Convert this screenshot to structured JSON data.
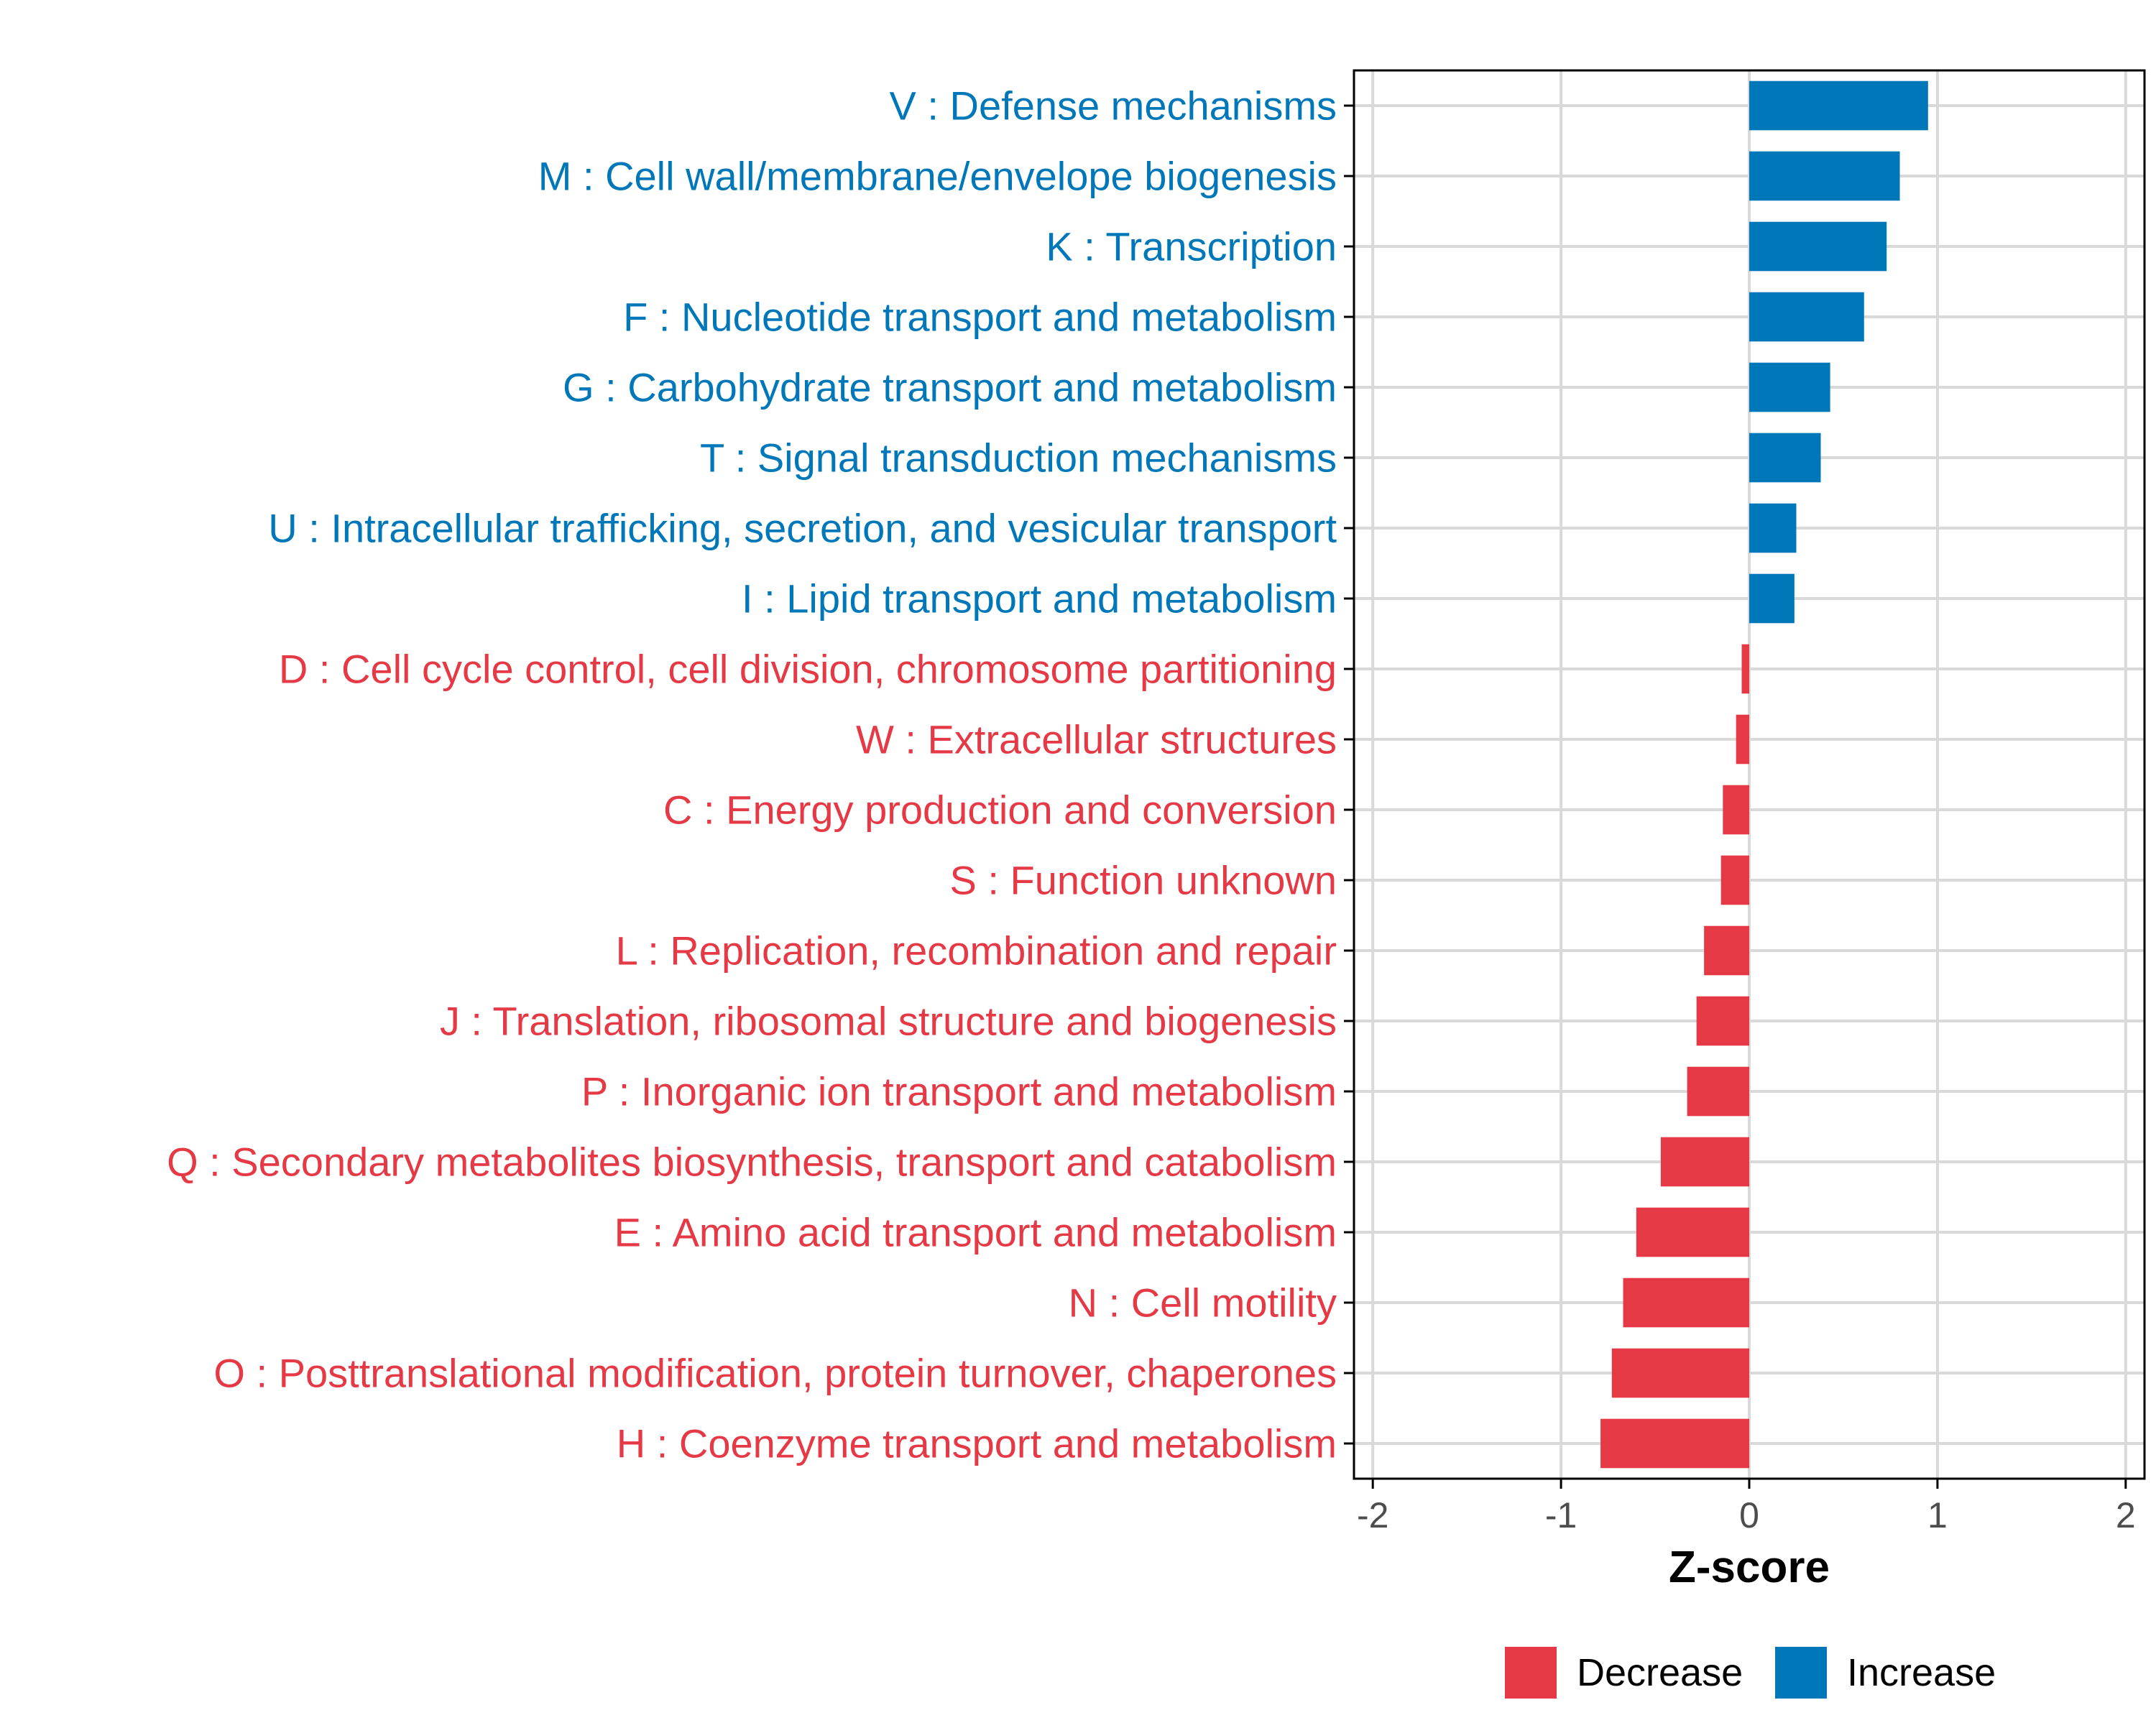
{
  "chart_data": {
    "type": "bar",
    "orientation": "horizontal",
    "xlabel": "Z-score",
    "ylabel": "",
    "xlim": [
      -2.1,
      2.1
    ],
    "x_ticks": [
      -2,
      -1,
      0,
      1,
      2
    ],
    "x_tick_labels": [
      "-2",
      "-1",
      "0",
      "1",
      "2"
    ],
    "grid": true,
    "legend_position": "bottom",
    "colors": {
      "Increase": "#0077b8",
      "Decrease": "#e63946",
      "grid": "#d9d9d9",
      "axis": "#000000"
    },
    "legend": [
      {
        "name": "Decrease",
        "color": "#e63946"
      },
      {
        "name": "Increase",
        "color": "#0077b8"
      }
    ],
    "categories": [
      {
        "label": "V : Defense mechanisms",
        "value": 0.95,
        "group": "Increase"
      },
      {
        "label": "M : Cell wall/membrane/envelope biogenesis",
        "value": 0.8,
        "group": "Increase"
      },
      {
        "label": "K : Transcription",
        "value": 0.73,
        "group": "Increase"
      },
      {
        "label": "F : Nucleotide transport and metabolism",
        "value": 0.61,
        "group": "Increase"
      },
      {
        "label": "G : Carbohydrate transport and metabolism",
        "value": 0.43,
        "group": "Increase"
      },
      {
        "label": "T : Signal transduction mechanisms",
        "value": 0.38,
        "group": "Increase"
      },
      {
        "label": "U : Intracellular trafficking, secretion, and vesicular transport",
        "value": 0.25,
        "group": "Increase"
      },
      {
        "label": "I : Lipid transport and metabolism",
        "value": 0.24,
        "group": "Increase"
      },
      {
        "label": "D : Cell cycle control, cell division, chromosome partitioning",
        "value": -0.04,
        "group": "Decrease"
      },
      {
        "label": "W : Extracellular structures",
        "value": -0.07,
        "group": "Decrease"
      },
      {
        "label": "C : Energy production and conversion",
        "value": -0.14,
        "group": "Decrease"
      },
      {
        "label": "S : Function unknown",
        "value": -0.15,
        "group": "Decrease"
      },
      {
        "label": "L : Replication, recombination and repair",
        "value": -0.24,
        "group": "Decrease"
      },
      {
        "label": "J : Translation, ribosomal structure and biogenesis",
        "value": -0.28,
        "group": "Decrease"
      },
      {
        "label": "P : Inorganic ion transport and metabolism",
        "value": -0.33,
        "group": "Decrease"
      },
      {
        "label": "Q : Secondary metabolites biosynthesis, transport and catabolism",
        "value": -0.47,
        "group": "Decrease"
      },
      {
        "label": "E : Amino acid transport and metabolism",
        "value": -0.6,
        "group": "Decrease"
      },
      {
        "label": "N : Cell motility",
        "value": -0.67,
        "group": "Decrease"
      },
      {
        "label": "O : Posttranslational modification, protein turnover, chaperones",
        "value": -0.73,
        "group": "Decrease"
      },
      {
        "label": "H : Coenzyme transport and metabolism",
        "value": -0.79,
        "group": "Decrease"
      }
    ]
  }
}
